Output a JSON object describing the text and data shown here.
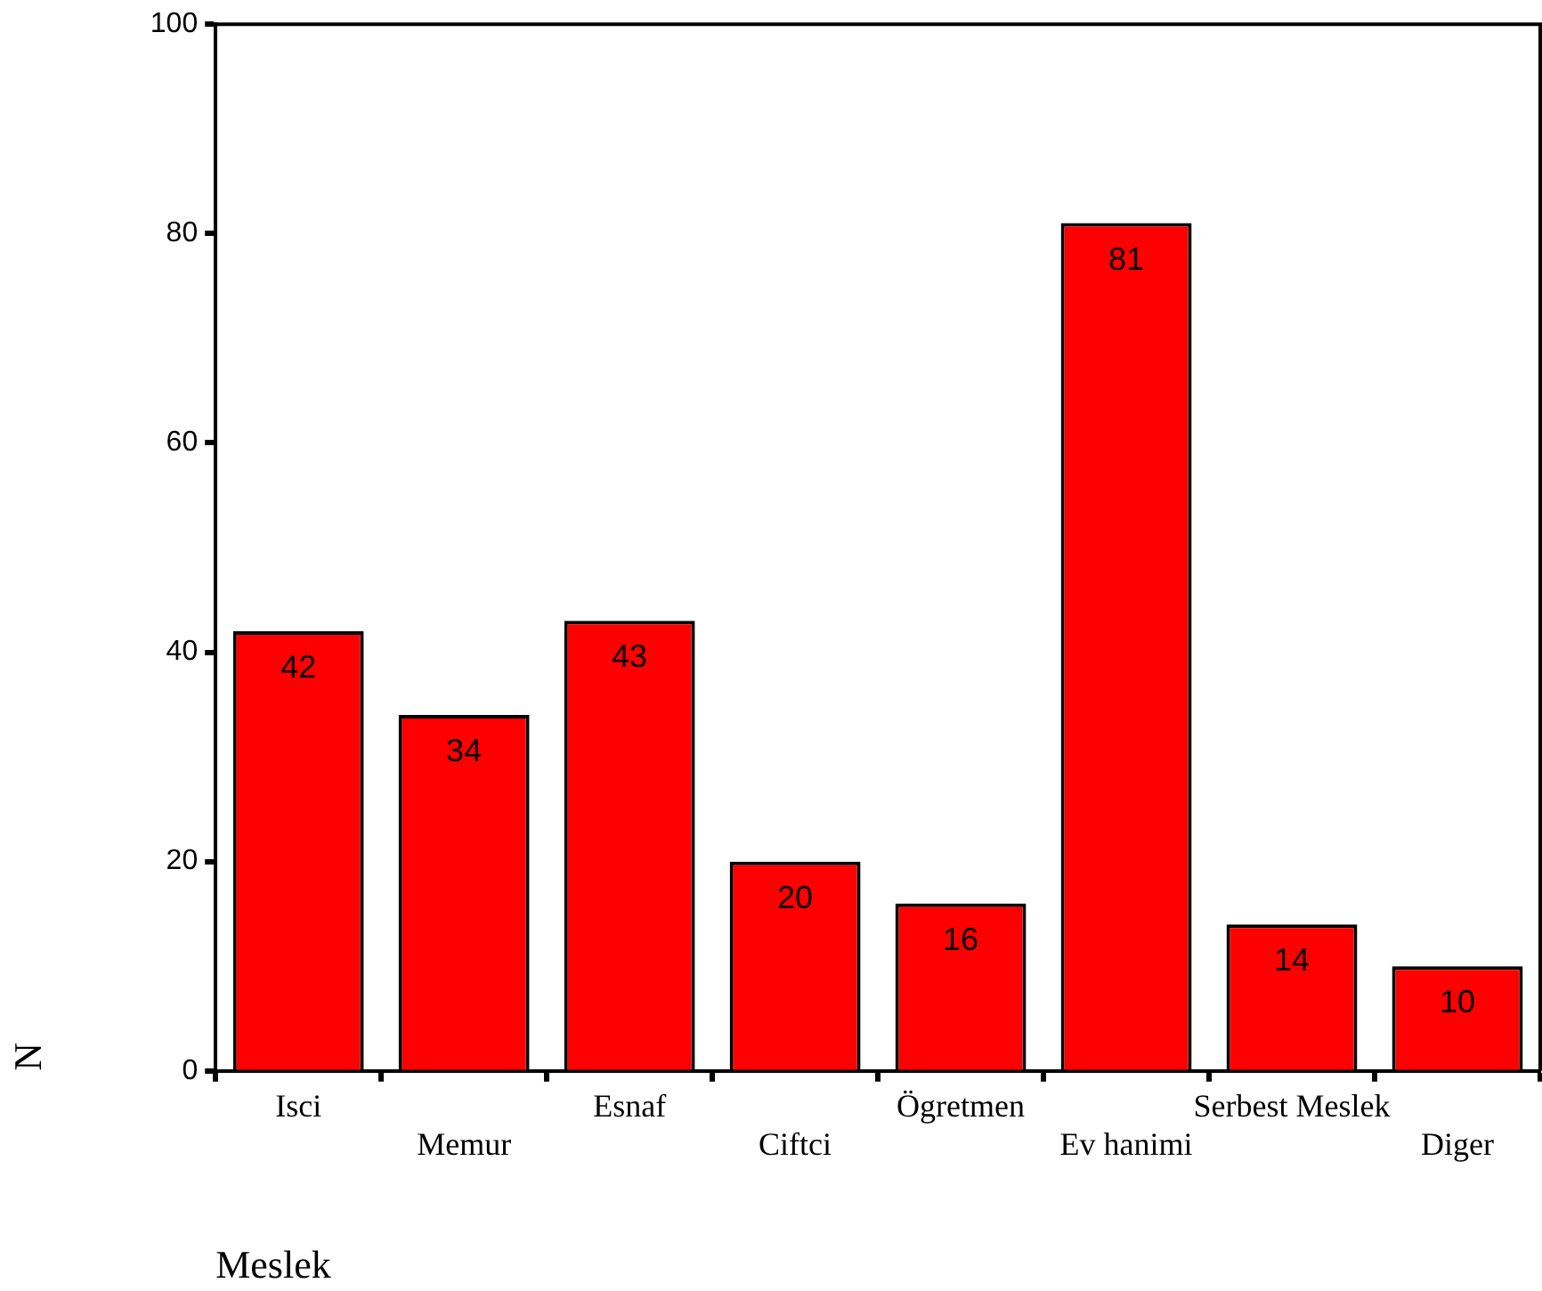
{
  "chart_data": {
    "type": "bar",
    "xlabel": "Meslek",
    "ylabel": "N",
    "categories": [
      "Isci",
      "Memur",
      "Esnaf",
      "Ciftci",
      "Ögretmen",
      "Ev hanimi",
      "Serbest Meslek",
      "Diger"
    ],
    "values": [
      42,
      34,
      43,
      20,
      16,
      81,
      14,
      10
    ],
    "color": "#ff0000",
    "ylim": [
      0,
      100
    ],
    "yticks": [
      0,
      20,
      40,
      60,
      80,
      100
    ],
    "grid": false,
    "legend": false,
    "data_labels": true
  }
}
